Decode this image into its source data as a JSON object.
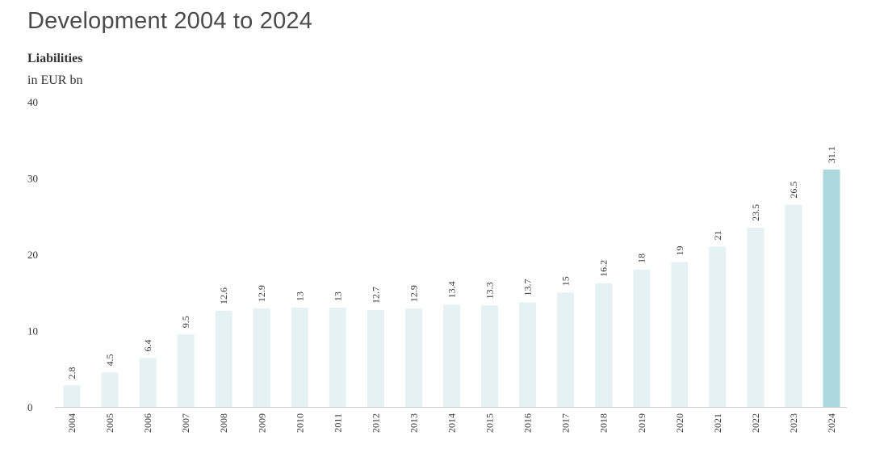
{
  "title": "Development 2004 to 2024",
  "chart_data": {
    "type": "bar",
    "series_label": "Liabilities",
    "unit_label": "in EUR bn",
    "categories": [
      "2004",
      "2005",
      "2006",
      "2007",
      "2008",
      "2009",
      "2010",
      "2011",
      "2012",
      "2013",
      "2014",
      "2015",
      "2016",
      "2017",
      "2018",
      "2019",
      "2020",
      "2021",
      "2022",
      "2023",
      "2024"
    ],
    "values": [
      2.8,
      4.5,
      6.4,
      9.5,
      12.6,
      12.9,
      13,
      13,
      12.7,
      12.9,
      13.4,
      13.3,
      13.7,
      15,
      16.2,
      18,
      19,
      21,
      23.5,
      26.5,
      31.1
    ],
    "value_labels": [
      "2.8",
      "4.5",
      "6.4",
      "9.5",
      "12.6",
      "12.9",
      "13",
      "13",
      "12.7",
      "12.9",
      "13.4",
      "13.3",
      "13.7",
      "15",
      "16.2",
      "18",
      "19",
      "21",
      "23.5",
      "26.5",
      "31.1"
    ],
    "yticks": [
      "0",
      "10",
      "20",
      "30",
      "40"
    ],
    "ylim": [
      0,
      40
    ],
    "grid": false,
    "colors": {
      "bar": "#e6f1f3",
      "highlight": "#acd8dd",
      "axis": "#cccccc",
      "text": "#333333",
      "title": "#4a4a4a"
    },
    "highlight_index": 20
  }
}
